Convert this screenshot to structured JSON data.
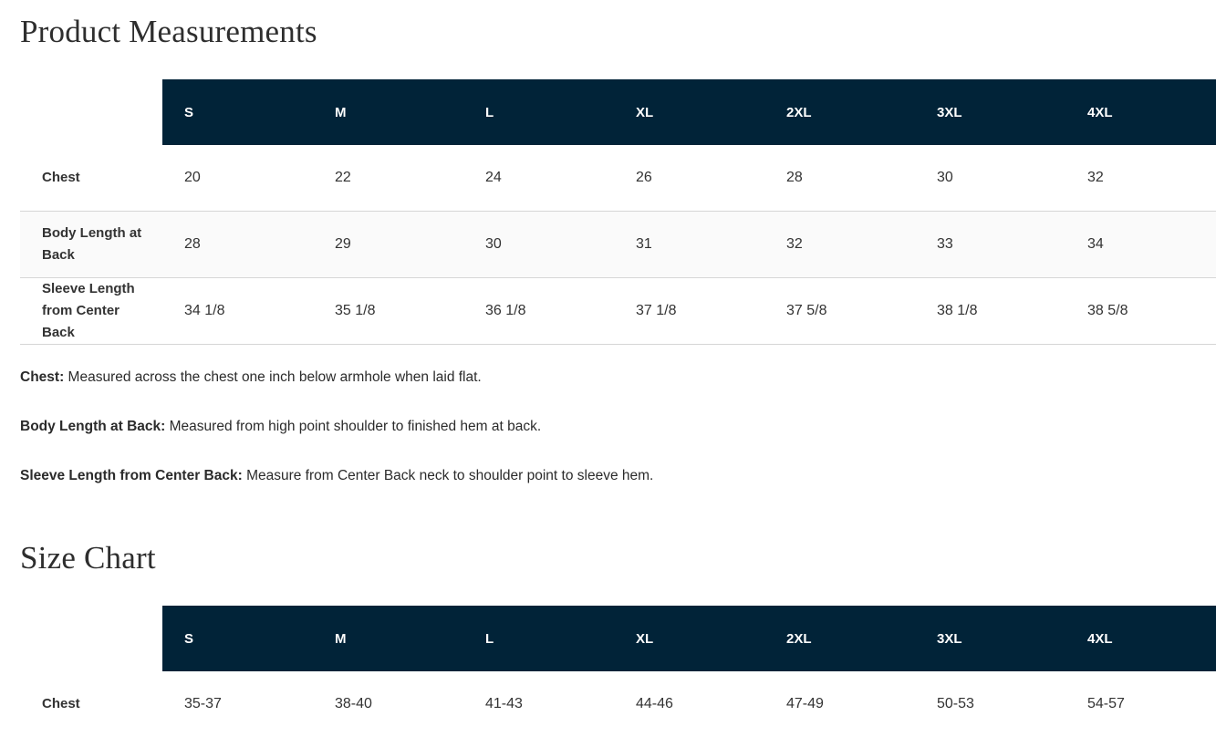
{
  "measurements": {
    "title": "Product Measurements",
    "sizes": [
      "S",
      "M",
      "L",
      "XL",
      "2XL",
      "3XL",
      "4XL"
    ],
    "rows": [
      {
        "label": "Chest",
        "values": [
          "20",
          "22",
          "24",
          "26",
          "28",
          "30",
          "32"
        ]
      },
      {
        "label": "Body Length at Back",
        "values": [
          "28",
          "29",
          "30",
          "31",
          "32",
          "33",
          "34"
        ]
      },
      {
        "label": "Sleeve Length from Center Back",
        "values": [
          "34 1/8",
          "35 1/8",
          "36 1/8",
          "37 1/8",
          "37 5/8",
          "38 1/8",
          "38 5/8"
        ]
      }
    ],
    "notes": [
      {
        "term": "Chest:",
        "text": " Measured across the chest one inch below armhole when laid flat."
      },
      {
        "term": "Body Length at Back:",
        "text": " Measured from high point shoulder to finished hem at back."
      },
      {
        "term": "Sleeve Length from Center Back:",
        "text": " Measure from Center Back neck to shoulder point to sleeve hem."
      }
    ]
  },
  "size_chart": {
    "title": "Size Chart",
    "sizes": [
      "S",
      "M",
      "L",
      "XL",
      "2XL",
      "3XL",
      "4XL"
    ],
    "rows": [
      {
        "label": "Chest",
        "values": [
          "35-37",
          "38-40",
          "41-43",
          "44-46",
          "47-49",
          "50-53",
          "54-57"
        ]
      }
    ]
  },
  "colors": {
    "header_bg": "#012338",
    "header_text": "#ffffff"
  }
}
